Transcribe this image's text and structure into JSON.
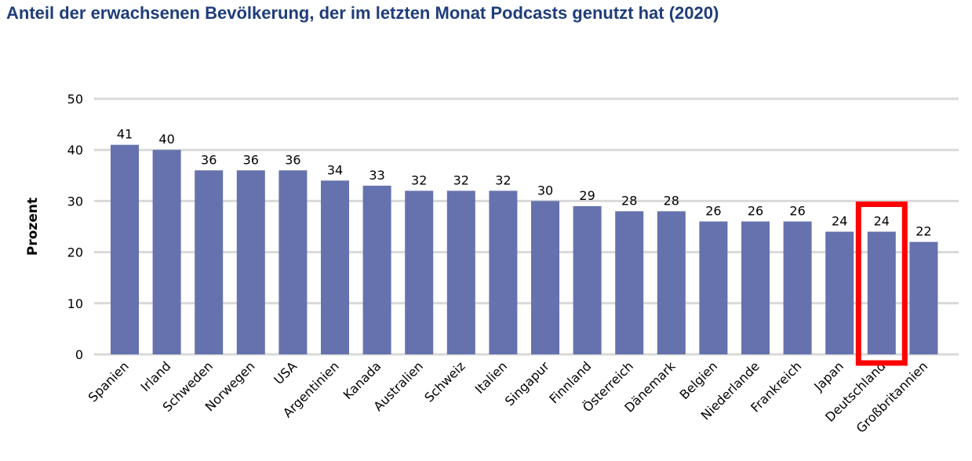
{
  "chart_data": {
    "type": "bar",
    "title": "Anteil der erwachsenen Bevölkerung, der im letzten Monat Podcasts genutzt hat (2020)",
    "xlabel": "",
    "ylabel": "Prozent",
    "ylim": [
      0,
      50
    ],
    "yticks": [
      0,
      10,
      20,
      30,
      40,
      50
    ],
    "grid": true,
    "categories": [
      "Spanien",
      "Irland",
      "Schweden",
      "Norwegen",
      "USA",
      "Argentinien",
      "Kanada",
      "Australien",
      "Schweiz",
      "Italien",
      "Singapur",
      "Finnland",
      "Österreich",
      "Dänemark",
      "Belgien",
      "Niederlande",
      "Frankreich",
      "Japan",
      "Deutschland",
      "Großbritannien"
    ],
    "values": [
      41,
      40,
      36,
      36,
      36,
      34,
      33,
      32,
      32,
      32,
      30,
      29,
      28,
      28,
      26,
      26,
      26,
      24,
      24,
      22
    ],
    "highlighted_category": "Deutschland",
    "colors": {
      "bar": "#6572ad",
      "highlight": "#ff0000",
      "grid": "#d9d9d9",
      "title": "#1f3d7a"
    }
  }
}
